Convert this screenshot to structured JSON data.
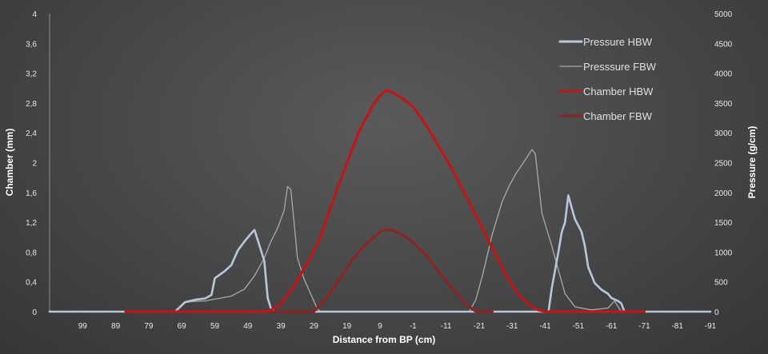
{
  "chart_data": {
    "type": "line",
    "title": "",
    "xlabel": "Distance from BP (cm)",
    "ylabel": "Chamber (mm)",
    "y2label": "Pressure (g/cm)",
    "xlim": [
      109,
      -91
    ],
    "ylim": [
      0,
      4
    ],
    "y2lim": [
      0,
      5000
    ],
    "x_ticks": [
      99,
      89,
      79,
      69,
      59,
      49,
      39,
      29,
      19,
      9,
      -1,
      -11,
      -21,
      -31,
      -41,
      -51,
      -61,
      -71,
      -81,
      -91
    ],
    "x_tick_labels": [
      "99",
      "89",
      "79",
      "69",
      "59",
      "49",
      "39",
      "29",
      "19",
      "9",
      "-1",
      "-11",
      "-21",
      "-31",
      "-41",
      "-51",
      "-61",
      "-71",
      "-81",
      "-91"
    ],
    "y_ticks": [
      0,
      0.4,
      0.8,
      1.2,
      1.6,
      2,
      2.4,
      2.8,
      3.2,
      3.6,
      4
    ],
    "y_tick_labels": [
      "0",
      "0,4",
      "0,8",
      "1,2",
      "1,6",
      "2",
      "2,4",
      "2,8",
      "3,2",
      "3,6",
      "4"
    ],
    "y2_ticks": [
      0,
      500,
      1000,
      1500,
      2000,
      2500,
      3000,
      3500,
      4000,
      4500,
      5000
    ],
    "y2_tick_labels": [
      "0",
      "500",
      "1000",
      "1500",
      "2000",
      "2500",
      "3000",
      "3500",
      "4000",
      "4500",
      "5000"
    ],
    "legend_position": "top-right",
    "series": [
      {
        "name": "Pressure HBW",
        "axis": "secondary",
        "color": "#b8c8dc",
        "weight": "thick",
        "points": [
          [
            109,
            0
          ],
          [
            71,
            0
          ],
          [
            68,
            160
          ],
          [
            65,
            200
          ],
          [
            62,
            220
          ],
          [
            60,
            280
          ],
          [
            59,
            560
          ],
          [
            56,
            680
          ],
          [
            54,
            780
          ],
          [
            52,
            1030
          ],
          [
            50,
            1180
          ],
          [
            48,
            1310
          ],
          [
            47,
            1370
          ],
          [
            46,
            1200
          ],
          [
            44,
            850
          ],
          [
            43,
            230
          ],
          [
            42,
            50
          ],
          [
            41,
            0
          ],
          [
            -42,
            0
          ],
          [
            -43,
            400
          ],
          [
            -44,
            700
          ],
          [
            -45,
            1000
          ],
          [
            -46,
            1330
          ],
          [
            -47,
            1500
          ],
          [
            -48,
            1950
          ],
          [
            -49,
            1750
          ],
          [
            -50,
            1550
          ],
          [
            -52,
            1340
          ],
          [
            -53,
            1100
          ],
          [
            -54,
            750
          ],
          [
            -56,
            480
          ],
          [
            -58,
            370
          ],
          [
            -60,
            300
          ],
          [
            -61,
            230
          ],
          [
            -63,
            180
          ],
          [
            -64,
            140
          ],
          [
            -65,
            0
          ],
          [
            -91,
            0
          ]
        ]
      },
      {
        "name": "Presssure FBW",
        "axis": "secondary",
        "color": "#aaaaaa",
        "weight": "thin",
        "points": [
          [
            109,
            0
          ],
          [
            71,
            0
          ],
          [
            68,
            150
          ],
          [
            66,
            170
          ],
          [
            62,
            180
          ],
          [
            58,
            220
          ],
          [
            54,
            260
          ],
          [
            50,
            380
          ],
          [
            47,
            600
          ],
          [
            44,
            900
          ],
          [
            42,
            1180
          ],
          [
            40,
            1400
          ],
          [
            38,
            1700
          ],
          [
            37,
            2100
          ],
          [
            36,
            2050
          ],
          [
            35,
            1500
          ],
          [
            34,
            900
          ],
          [
            32,
            550
          ],
          [
            30,
            300
          ],
          [
            28,
            50
          ],
          [
            27,
            0
          ],
          [
            -18,
            0
          ],
          [
            -20,
            200
          ],
          [
            -22,
            600
          ],
          [
            -25,
            1300
          ],
          [
            -28,
            1850
          ],
          [
            -30,
            2100
          ],
          [
            -32,
            2300
          ],
          [
            -35,
            2550
          ],
          [
            -37,
            2720
          ],
          [
            -38,
            2650
          ],
          [
            -40,
            1650
          ],
          [
            -43,
            1100
          ],
          [
            -45,
            700
          ],
          [
            -47,
            300
          ],
          [
            -50,
            80
          ],
          [
            -55,
            30
          ],
          [
            -60,
            60
          ],
          [
            -62,
            180
          ],
          [
            -64,
            0
          ],
          [
            -91,
            0
          ]
        ]
      },
      {
        "name": "Chamber HBW",
        "axis": "primary",
        "color": "#c0161a",
        "weight": "thick",
        "points": [
          [
            86,
            0
          ],
          [
            43,
            0
          ],
          [
            39,
            0.1
          ],
          [
            35,
            0.35
          ],
          [
            31,
            0.65
          ],
          [
            27,
            1.0
          ],
          [
            24,
            1.4
          ],
          [
            19,
            2.0
          ],
          [
            15,
            2.45
          ],
          [
            11,
            2.78
          ],
          [
            9,
            2.9
          ],
          [
            7,
            2.97
          ],
          [
            5,
            2.94
          ],
          [
            1,
            2.82
          ],
          [
            -1,
            2.75
          ],
          [
            -5,
            2.5
          ],
          [
            -9,
            2.2
          ],
          [
            -13,
            1.9
          ],
          [
            -17,
            1.55
          ],
          [
            -21,
            1.2
          ],
          [
            -25,
            0.85
          ],
          [
            -29,
            0.5
          ],
          [
            -33,
            0.22
          ],
          [
            -37,
            0.06
          ],
          [
            -39,
            0.02
          ],
          [
            -41,
            0
          ],
          [
            -71,
            0
          ]
        ]
      },
      {
        "name": "Chamber FBW",
        "axis": "primary",
        "color": "#8a2525",
        "weight": "thick",
        "points": [
          [
            44,
            0
          ],
          [
            29,
            0
          ],
          [
            25,
            0.2
          ],
          [
            21,
            0.45
          ],
          [
            17,
            0.72
          ],
          [
            13,
            0.92
          ],
          [
            9,
            1.07
          ],
          [
            7,
            1.1
          ],
          [
            5,
            1.09
          ],
          [
            1,
            1.0
          ],
          [
            -1,
            0.93
          ],
          [
            -5,
            0.75
          ],
          [
            -9,
            0.52
          ],
          [
            -13,
            0.3
          ],
          [
            -17,
            0.1
          ],
          [
            -20,
            0
          ],
          [
            -25,
            0
          ]
        ]
      }
    ]
  }
}
